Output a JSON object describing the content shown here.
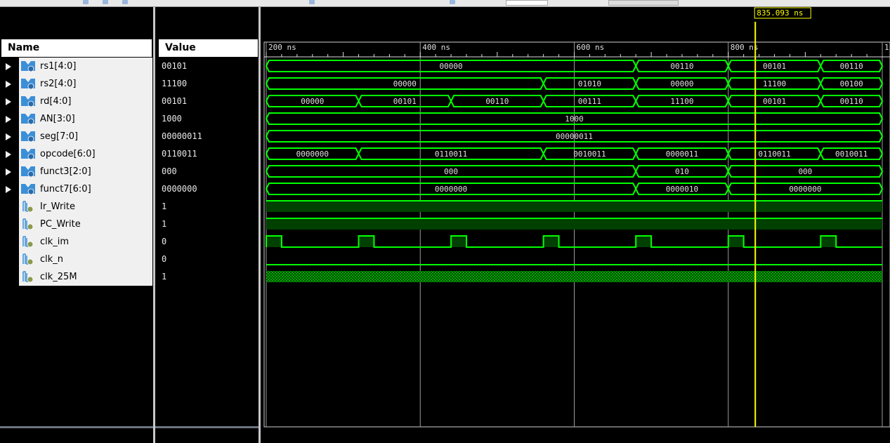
{
  "colors": {
    "wave": "#00ff00",
    "wave_fill": "#004000",
    "cursor": "#ffff00",
    "grid": "#9a9a9a",
    "text": "#e0e0e0"
  },
  "headers": {
    "name": "Name",
    "value": "Value"
  },
  "cursor": {
    "time_ns": 835.093,
    "label": "835.093 ns"
  },
  "timeline": {
    "start_ns": 200,
    "end_ns": 1000,
    "unit": "ns",
    "major_ticks": [
      {
        "t": 200,
        "label": "200 ns"
      },
      {
        "t": 400,
        "label": "400 ns"
      },
      {
        "t": 600,
        "label": "600 ns"
      },
      {
        "t": 800,
        "label": "800 ns"
      },
      {
        "t": 1000,
        "label": "1,"
      }
    ]
  },
  "signals": [
    {
      "name": "rs1[4:0]",
      "value": "00101",
      "kind": "bus",
      "icon": "bus-signal-icon",
      "segments": [
        [
          200,
          680,
          "00000"
        ],
        [
          680,
          800,
          "00110"
        ],
        [
          800,
          920,
          "00101"
        ],
        [
          920,
          1000,
          "00110"
        ]
      ]
    },
    {
      "name": "rs2[4:0]",
      "value": "11100",
      "kind": "bus",
      "icon": "bus-signal-icon",
      "segments": [
        [
          200,
          560,
          "00000"
        ],
        [
          560,
          680,
          "01010"
        ],
        [
          680,
          800,
          "00000"
        ],
        [
          800,
          920,
          "11100"
        ],
        [
          920,
          1000,
          "00100"
        ]
      ]
    },
    {
      "name": "rd[4:0]",
      "value": "00101",
      "kind": "bus",
      "icon": "bus-signal-icon",
      "segments": [
        [
          200,
          320,
          "00000"
        ],
        [
          320,
          440,
          "00101"
        ],
        [
          440,
          560,
          "00110"
        ],
        [
          560,
          680,
          "00111"
        ],
        [
          680,
          800,
          "11100"
        ],
        [
          800,
          920,
          "00101"
        ],
        [
          920,
          1000,
          "00110"
        ]
      ]
    },
    {
      "name": "AN[3:0]",
      "value": "1000",
      "kind": "bus",
      "icon": "bus-signal-icon",
      "segments": [
        [
          200,
          1000,
          "1000"
        ]
      ]
    },
    {
      "name": "seg[7:0]",
      "value": "00000011",
      "kind": "bus",
      "icon": "bus-signal-icon",
      "segments": [
        [
          200,
          1000,
          "00000011"
        ]
      ]
    },
    {
      "name": "opcode[6:0]",
      "value": "0110011",
      "kind": "bus",
      "icon": "bus-signal-icon",
      "segments": [
        [
          200,
          320,
          "0000000"
        ],
        [
          320,
          560,
          "0110011"
        ],
        [
          560,
          680,
          "0010011"
        ],
        [
          680,
          800,
          "0000011"
        ],
        [
          800,
          920,
          "0110011"
        ],
        [
          920,
          1000,
          "0010011"
        ]
      ]
    },
    {
      "name": "funct3[2:0]",
      "value": "000",
      "kind": "bus",
      "icon": "bus-signal-icon",
      "segments": [
        [
          200,
          680,
          "000"
        ],
        [
          680,
          800,
          "010"
        ],
        [
          800,
          1000,
          "000"
        ]
      ]
    },
    {
      "name": "funct7[6:0]",
      "value": "0000000",
      "kind": "bus",
      "icon": "bus-signal-icon",
      "segments": [
        [
          200,
          680,
          "0000000"
        ],
        [
          680,
          800,
          "0000010"
        ],
        [
          800,
          1000,
          "0000000"
        ]
      ]
    },
    {
      "name": "Ir_Write",
      "value": "1",
      "kind": "bit",
      "icon": "bit-signal-icon",
      "high": [
        [
          200,
          1000
        ]
      ]
    },
    {
      "name": "PC_Write",
      "value": "1",
      "kind": "bit",
      "icon": "bit-signal-icon",
      "high": [
        [
          200,
          1000
        ]
      ]
    },
    {
      "name": "clk_im",
      "value": "0",
      "kind": "bit",
      "icon": "bit-signal-icon",
      "high": [
        [
          200,
          220
        ],
        [
          320,
          340
        ],
        [
          440,
          460
        ],
        [
          560,
          580
        ],
        [
          680,
          700
        ],
        [
          800,
          820
        ],
        [
          920,
          940
        ]
      ]
    },
    {
      "name": "clk_n",
      "value": "0",
      "kind": "bit",
      "icon": "bit-signal-icon",
      "high": []
    },
    {
      "name": "clk_25M",
      "value": "1",
      "kind": "fast-clock",
      "icon": "bit-signal-icon",
      "high": []
    }
  ]
}
